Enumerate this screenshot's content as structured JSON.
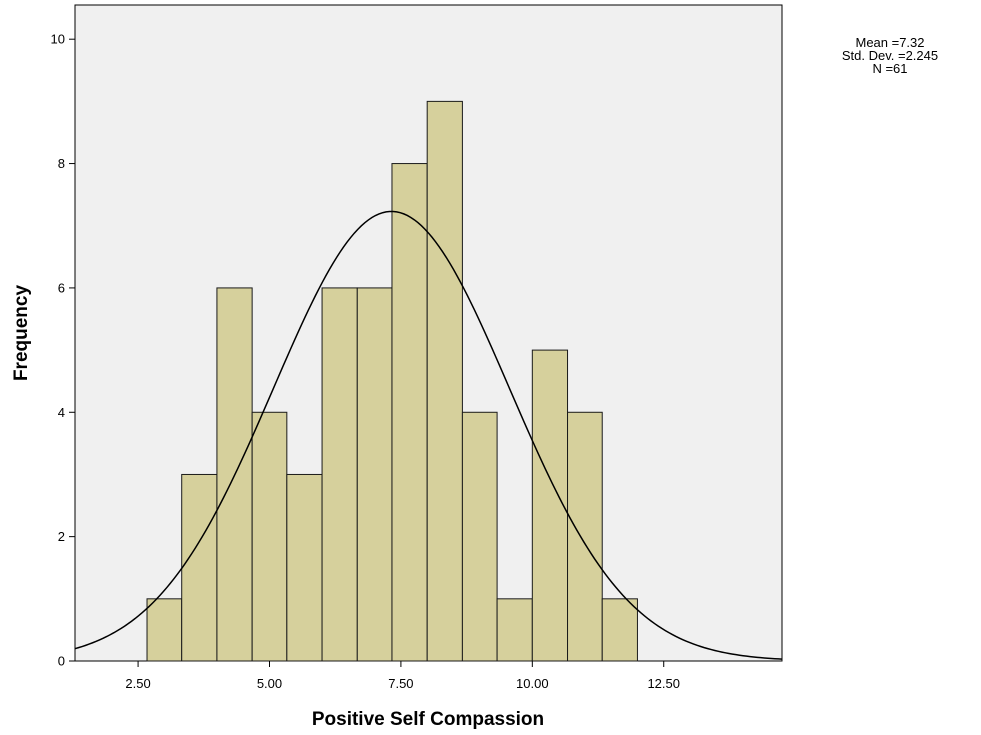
{
  "chart_data": {
    "type": "bar",
    "subtype": "histogram",
    "xlabel": "Positive Self Compassion",
    "ylabel": "Frequency",
    "xlim": [
      1.3,
      14.75
    ],
    "ylim": [
      0,
      10.55
    ],
    "x_ticks": [
      2.5,
      5.0,
      7.5,
      10.0,
      12.5
    ],
    "x_tick_labels": [
      "2.50",
      "5.00",
      "7.50",
      "10.00",
      "12.50"
    ],
    "y_ticks": [
      0,
      2,
      4,
      6,
      8,
      10
    ],
    "y_tick_labels": [
      "0",
      "2",
      "4",
      "6",
      "8",
      "10"
    ],
    "bins": [
      {
        "x0": 2.67,
        "x1": 3.33,
        "count": 1
      },
      {
        "x0": 3.33,
        "x1": 4.0,
        "count": 3
      },
      {
        "x0": 4.0,
        "x1": 4.67,
        "count": 6
      },
      {
        "x0": 4.67,
        "x1": 5.33,
        "count": 4
      },
      {
        "x0": 5.33,
        "x1": 6.0,
        "count": 3
      },
      {
        "x0": 6.0,
        "x1": 6.67,
        "count": 6
      },
      {
        "x0": 6.67,
        "x1": 7.33,
        "count": 6
      },
      {
        "x0": 7.33,
        "x1": 8.0,
        "count": 8
      },
      {
        "x0": 8.0,
        "x1": 8.67,
        "count": 9
      },
      {
        "x0": 8.67,
        "x1": 9.33,
        "count": 4
      },
      {
        "x0": 9.33,
        "x1": 10.0,
        "count": 1
      },
      {
        "x0": 10.0,
        "x1": 10.67,
        "count": 5
      },
      {
        "x0": 10.67,
        "x1": 11.33,
        "count": 4
      },
      {
        "x0": 11.33,
        "x1": 12.0,
        "count": 1
      }
    ],
    "normal_curve": {
      "mean": 7.32,
      "sd": 2.245,
      "n": 61,
      "peak": 7.23
    },
    "stats_lines": [
      "Mean =7.32",
      "Std. Dev. =2.245",
      "N =61"
    ],
    "grid": false,
    "colors": {
      "bar_fill": "#d6d09c",
      "bar_stroke": "#1a1a1a",
      "plot_background": "#f0f0f0",
      "curve": "#000000"
    }
  }
}
